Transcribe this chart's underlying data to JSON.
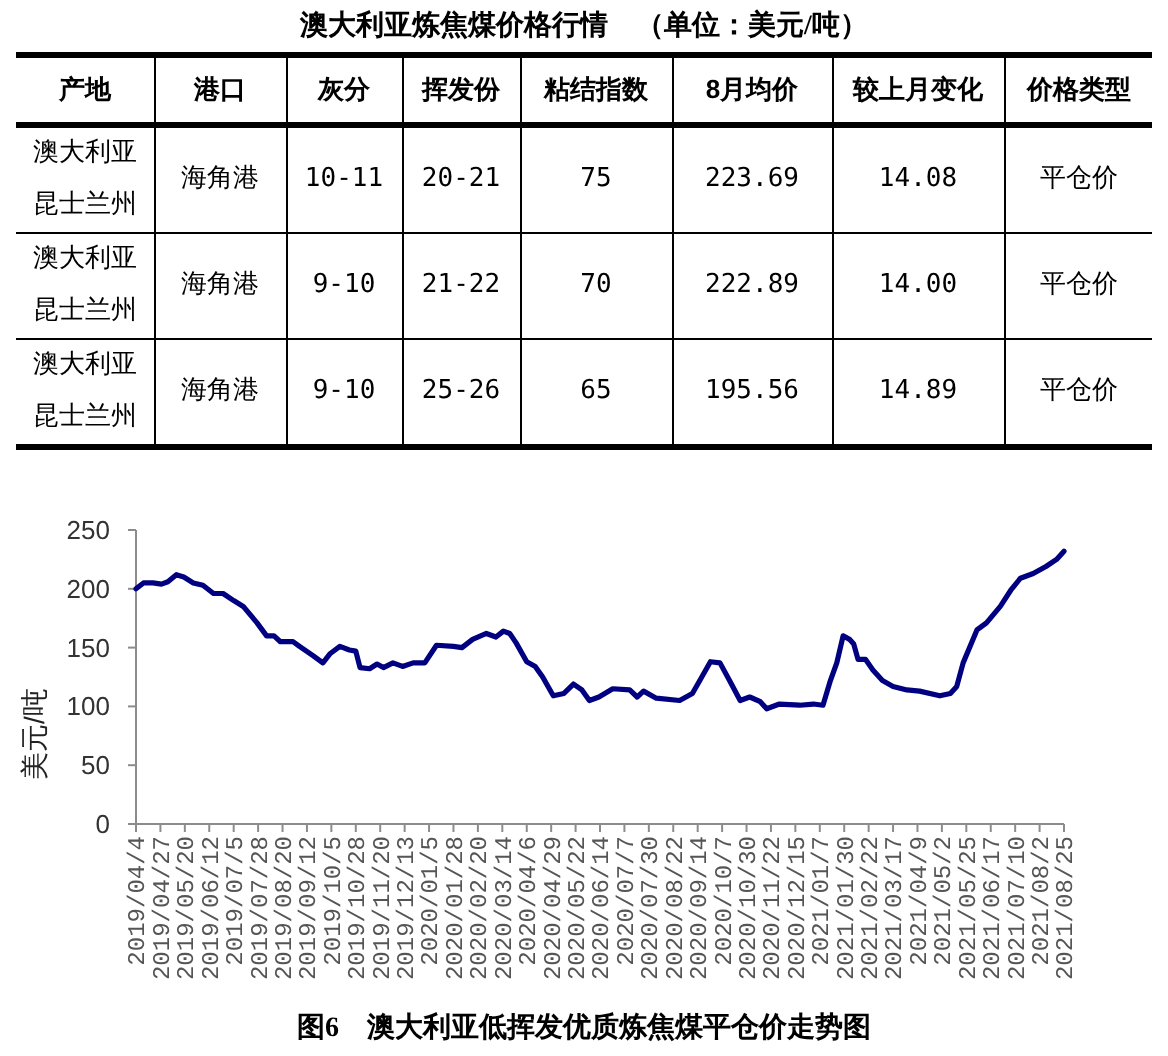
{
  "chart_data": [
    {
      "type": "other",
      "title": "澳大利亚炼焦煤价格行情　（单位：美元/吨）",
      "categories": [
        "产地",
        "港口",
        "灰分",
        "挥发份",
        "粘结指数",
        "8月均价",
        "较上月变化",
        "价格类型"
      ],
      "cell_labels": [
        [
          "澳大利亚昆士兰州",
          "海角港",
          "10-11",
          "20-21",
          "75",
          "223.69",
          "14.08",
          "平仓价"
        ],
        [
          "澳大利亚昆士兰州",
          "海角港",
          "9-10",
          "21-22",
          "70",
          "222.89",
          "14.00",
          "平仓价"
        ],
        [
          "澳大利亚昆士兰州",
          "海角港",
          "9-10",
          "25-26",
          "65",
          "195.56",
          "14.89",
          "平仓价"
        ]
      ]
    },
    {
      "type": "line",
      "title": "图6　澳大利亚低挥发优质炼焦煤平仓价走势图",
      "ylabel": "美元/吨",
      "x": [
        "2019-04-04",
        "2019-04-11",
        "2019-04-20",
        "2019-04-28",
        "2019-05-04",
        "2019-05-12",
        "2019-05-19",
        "2019-05-28",
        "2019-06-06",
        "2019-06-16",
        "2019-06-25",
        "2019-07-05",
        "2019-07-14",
        "2019-07-27",
        "2019-08-05",
        "2019-08-12",
        "2019-08-18",
        "2019-08-30",
        "2019-09-05",
        "2019-09-18",
        "2019-09-27",
        "2019-10-04",
        "2019-10-13",
        "2019-10-22",
        "2019-10-28",
        "2019-11-01",
        "2019-11-10",
        "2019-11-17",
        "2019-11-23",
        "2019-12-02",
        "2019-12-11",
        "2019-12-21",
        "2020-01-01",
        "2020-01-12",
        "2020-01-28",
        "2020-02-05",
        "2020-02-15",
        "2020-02-28",
        "2020-03-08",
        "2020-03-15",
        "2020-03-21",
        "2020-03-27",
        "2020-04-06",
        "2020-04-14",
        "2020-04-21",
        "2020-05-01",
        "2020-05-11",
        "2020-05-20",
        "2020-05-28",
        "2020-06-04",
        "2020-06-13",
        "2020-06-26",
        "2020-07-12",
        "2020-07-19",
        "2020-07-25",
        "2020-08-06",
        "2020-08-28",
        "2020-09-09",
        "2020-09-16",
        "2020-09-26",
        "2020-10-05",
        "2020-10-14",
        "2020-10-24",
        "2020-11-02",
        "2020-11-12",
        "2020-11-18",
        "2020-11-30",
        "2020-12-19",
        "2021-01-01",
        "2021-01-10",
        "2021-01-17",
        "2021-01-23",
        "2021-01-29",
        "2021-02-04",
        "2021-02-08",
        "2021-02-12",
        "2021-02-19",
        "2021-02-26",
        "2021-03-07",
        "2021-03-17",
        "2021-03-30",
        "2021-04-11",
        "2021-04-30",
        "2021-05-10",
        "2021-05-16",
        "2021-05-22",
        "2021-06-04",
        "2021-06-13",
        "2021-06-26",
        "2021-07-06",
        "2021-07-15",
        "2021-07-27",
        "2021-08-08",
        "2021-08-18",
        "2021-08-25"
      ],
      "series": [
        {
          "color": "#000080",
          "values": [
            200,
            205,
            205,
            204,
            206,
            212,
            210,
            205,
            203,
            196,
            196,
            190,
            185,
            171,
            160,
            160,
            155,
            155,
            151,
            143,
            137,
            145,
            151,
            148,
            147,
            133,
            132,
            136,
            133,
            137,
            134,
            137,
            137,
            152,
            151,
            150,
            157,
            162,
            159,
            164,
            162,
            154,
            138,
            134,
            125,
            109,
            111,
            119,
            114,
            105,
            108,
            115,
            114,
            108,
            113,
            107,
            105,
            111,
            122,
            138,
            137,
            122,
            105,
            108,
            104,
            98,
            102,
            101,
            102,
            101,
            122,
            137,
            160,
            157,
            153,
            140,
            140,
            131,
            122,
            117,
            114,
            113,
            109,
            111,
            117,
            137,
            165,
            171,
            185,
            199,
            209,
            213,
            219,
            225,
            232
          ]
        }
      ],
      "xlim": [
        "2019-04-04",
        "2021-08-25"
      ],
      "ylim": [
        0,
        250
      ],
      "yticks": [
        0,
        50,
        100,
        150,
        200,
        250
      ],
      "xticks": [
        {
          "value": "2019-04-04",
          "label": "2019/04/4"
        },
        {
          "value": "2019-04-27",
          "label": "2019/04/27"
        },
        {
          "value": "2019-05-20",
          "label": "2019/05/20"
        },
        {
          "value": "2019-06-12",
          "label": "2019/06/12"
        },
        {
          "value": "2019-07-05",
          "label": "2019/07/5"
        },
        {
          "value": "2019-07-28",
          "label": "2019/07/28"
        },
        {
          "value": "2019-08-20",
          "label": "2019/08/20"
        },
        {
          "value": "2019-09-12",
          "label": "2019/09/12"
        },
        {
          "value": "2019-10-05",
          "label": "2019/10/5"
        },
        {
          "value": "2019-10-28",
          "label": "2019/10/28"
        },
        {
          "value": "2019-11-20",
          "label": "2019/11/20"
        },
        {
          "value": "2019-12-13",
          "label": "2019/12/13"
        },
        {
          "value": "2020-01-05",
          "label": "2020/01/5"
        },
        {
          "value": "2020-01-28",
          "label": "2020/01/28"
        },
        {
          "value": "2020-02-20",
          "label": "2020/02/20"
        },
        {
          "value": "2020-03-14",
          "label": "2020/03/14"
        },
        {
          "value": "2020-04-06",
          "label": "2020/04/6"
        },
        {
          "value": "2020-04-29",
          "label": "2020/04/29"
        },
        {
          "value": "2020-05-22",
          "label": "2020/05/22"
        },
        {
          "value": "2020-06-14",
          "label": "2020/06/14"
        },
        {
          "value": "2020-07-07",
          "label": "2020/07/7"
        },
        {
          "value": "2020-07-30",
          "label": "2020/07/30"
        },
        {
          "value": "2020-08-22",
          "label": "2020/08/22"
        },
        {
          "value": "2020-09-14",
          "label": "2020/09/14"
        },
        {
          "value": "2020-10-07",
          "label": "2020/10/7"
        },
        {
          "value": "2020-10-30",
          "label": "2020/10/30"
        },
        {
          "value": "2020-11-22",
          "label": "2020/11/22"
        },
        {
          "value": "2020-12-15",
          "label": "2020/12/15"
        },
        {
          "value": "2021-01-07",
          "label": "2021/01/7"
        },
        {
          "value": "2021-01-30",
          "label": "2021/01/30"
        },
        {
          "value": "2021-02-22",
          "label": "2021/02/22"
        },
        {
          "value": "2021-03-17",
          "label": "2021/03/17"
        },
        {
          "value": "2021-04-09",
          "label": "2021/04/9"
        },
        {
          "value": "2021-05-02",
          "label": "2021/05/2"
        },
        {
          "value": "2021-05-25",
          "label": "2021/05/25"
        },
        {
          "value": "2021-06-17",
          "label": "2021/06/17"
        },
        {
          "value": "2021-07-10",
          "label": "2021/07/10"
        },
        {
          "value": "2021-08-02",
          "label": "2021/08/2"
        },
        {
          "value": "2021-08-25",
          "label": "2021/08/25"
        }
      ]
    }
  ]
}
